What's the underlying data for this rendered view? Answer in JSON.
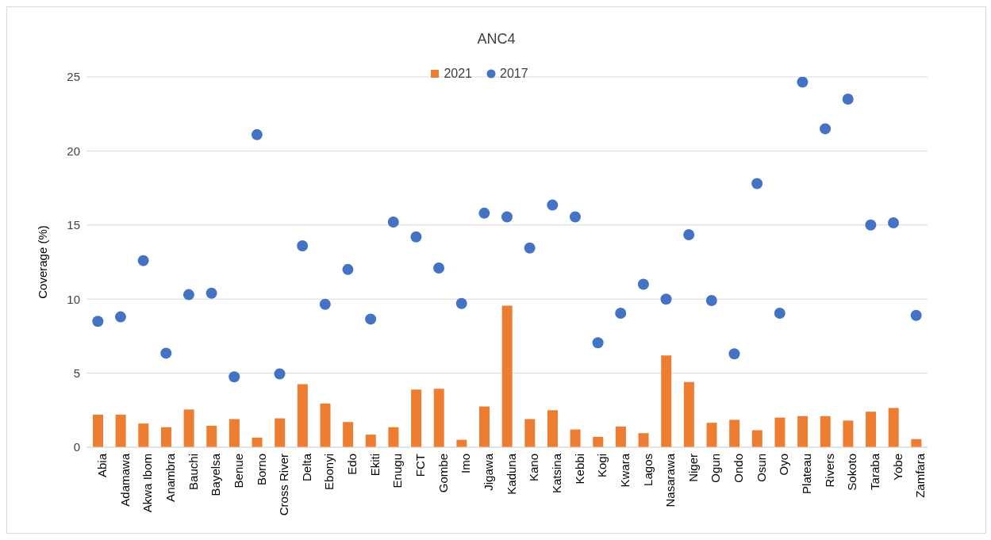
{
  "chart_data": {
    "type": "bar",
    "title": "ANC4",
    "ylabel": "Coverage (%)",
    "categories": [
      "Abia",
      "Adamawa",
      "Akwa Ibom",
      "Anambra",
      "Bauchi",
      "Bayelsa",
      "Benue",
      "Borno",
      "Cross River",
      "Delta",
      "Ebonyi",
      "Edo",
      "Ekiti",
      "Enugu",
      "FCT",
      "Gombe",
      "Imo",
      "Jigawa",
      "Kaduna",
      "Kano",
      "Katsina",
      "Kebbi",
      "Kogi",
      "Kwara",
      "Lagos",
      "Nasarawa",
      "Niger",
      "Ogun",
      "Ondo",
      "Osun",
      "Oyo",
      "Plateau",
      "Rivers",
      "Sokoto",
      "Taraba",
      "Yobe",
      "Zamfara"
    ],
    "series": [
      {
        "name": "2021",
        "color": "#ed7d31",
        "values": [
          2.2,
          2.2,
          1.6,
          1.35,
          2.55,
          1.45,
          1.9,
          0.65,
          1.95,
          4.25,
          2.95,
          1.7,
          0.85,
          1.35,
          3.9,
          3.95,
          0.5,
          2.75,
          9.55,
          1.9,
          2.5,
          1.2,
          0.7,
          1.4,
          0.95,
          6.2,
          4.4,
          1.65,
          1.85,
          1.15,
          2.0,
          2.1,
          2.1,
          1.8,
          2.4,
          2.65,
          0.55
        ]
      },
      {
        "name": "2017",
        "type": "scatter",
        "color": "#4472c4",
        "values": [
          8.5,
          8.8,
          12.6,
          6.35,
          10.3,
          10.4,
          4.75,
          21.1,
          4.95,
          13.6,
          9.65,
          12.0,
          8.65,
          15.2,
          14.2,
          12.1,
          9.7,
          15.8,
          15.55,
          13.45,
          16.35,
          15.55,
          7.05,
          9.05,
          11.0,
          10.0,
          14.35,
          9.9,
          6.3,
          17.8,
          9.05,
          24.65,
          21.5,
          23.5,
          15.0,
          15.15,
          8.9
        ]
      }
    ],
    "ylim": [
      0,
      25
    ],
    "yticks": [
      0,
      5,
      10,
      15,
      20,
      25
    ],
    "grid": "y",
    "legend": "top",
    "marker": "circle"
  }
}
